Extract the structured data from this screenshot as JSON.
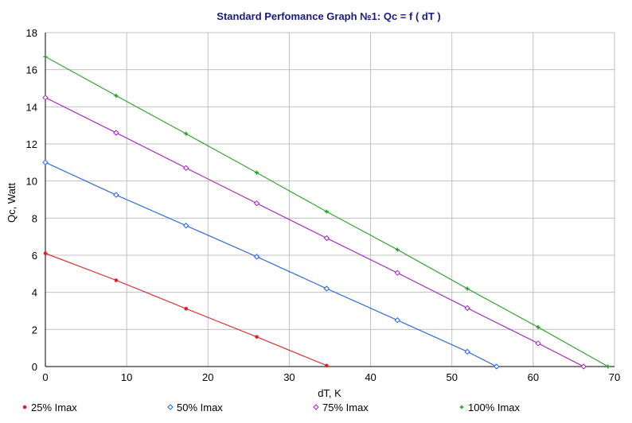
{
  "chart_data": {
    "type": "line",
    "title": "Standard Perfomance Graph №1: Qc = f ( dT )",
    "xlabel": "dT, K",
    "ylabel": "Qc, Watt",
    "xlim": [
      0,
      70
    ],
    "ylim": [
      0,
      18
    ],
    "x_ticks": [
      "0",
      "10",
      "20",
      "30",
      "40",
      "50",
      "60",
      "70"
    ],
    "y_ticks": [
      "0",
      "2",
      "4",
      "6",
      "8",
      "10",
      "12",
      "14",
      "16",
      "18"
    ],
    "grid": true,
    "legend_position": "bottom",
    "colors": {
      "title": "#1a1a80",
      "grid": "#c0c0c0",
      "axis": "#000000"
    },
    "series": [
      {
        "name": "25% Imax",
        "color": "#e02020",
        "marker": "dot",
        "x": [
          0,
          8.7,
          17.3,
          26,
          34.6
        ],
        "y": [
          6.1,
          4.65,
          3.12,
          1.6,
          0.05
        ]
      },
      {
        "name": "50% Imax",
        "color": "#2060e0",
        "marker": "diamond",
        "x": [
          0,
          8.7,
          17.3,
          26,
          34.6,
          43.3,
          51.9,
          55.5
        ],
        "y": [
          11.0,
          9.25,
          7.6,
          5.92,
          4.2,
          2.5,
          0.8,
          0.0
        ]
      },
      {
        "name": "75% Imax",
        "color": "#a020c0",
        "marker": "diamond",
        "x": [
          0,
          8.7,
          17.3,
          26,
          34.6,
          43.3,
          51.9,
          60.6,
          66.2
        ],
        "y": [
          14.5,
          12.6,
          10.7,
          8.8,
          6.92,
          5.05,
          3.15,
          1.25,
          0.0
        ]
      },
      {
        "name": "100% Imax",
        "color": "#20a020",
        "marker": "plus",
        "x": [
          0,
          8.7,
          17.3,
          26,
          34.6,
          43.3,
          51.9,
          60.6,
          69.2
        ],
        "y": [
          16.7,
          14.6,
          12.55,
          10.45,
          8.35,
          6.3,
          4.2,
          2.12,
          0.0
        ]
      }
    ]
  }
}
